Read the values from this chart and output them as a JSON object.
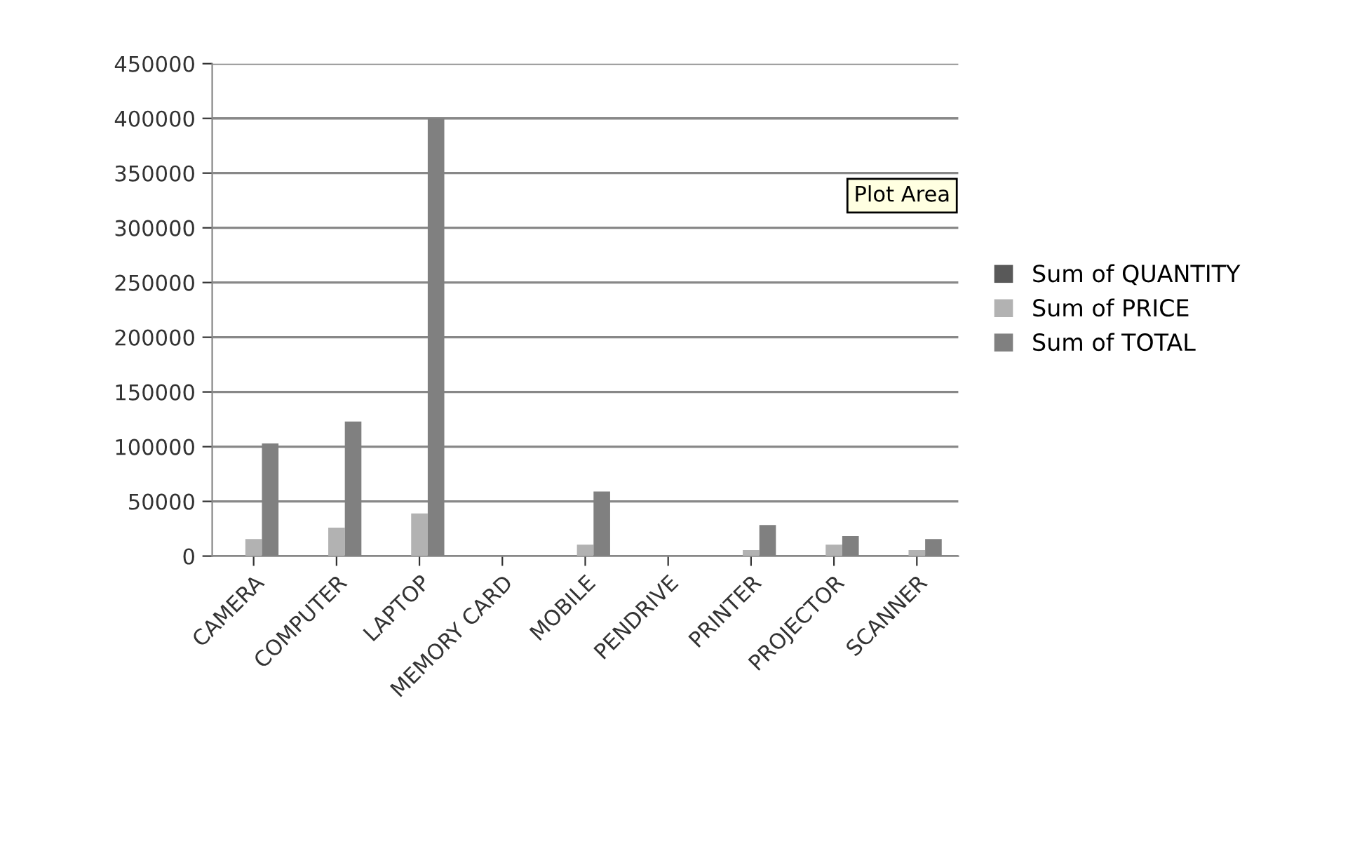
{
  "chart_data": {
    "type": "bar",
    "categories": [
      "CAMERA",
      "COMPUTER",
      "LAPTOP",
      "MEMORY CARD",
      "MOBILE",
      "PENDRIVE",
      "PRINTER",
      "PROJECTOR",
      "SCANNER"
    ],
    "series": [
      {
        "name": "Sum of QUANTITY",
        "color": "#595959",
        "values": [
          null,
          null,
          null,
          null,
          null,
          null,
          null,
          null,
          null
        ]
      },
      {
        "name": "Sum of PRICE",
        "color": "#b2b2b2",
        "values": [
          15600,
          26000,
          39000,
          null,
          10500,
          null,
          5500,
          10500,
          5500
        ]
      },
      {
        "name": "Sum of TOTAL",
        "color": "#808080",
        "values": [
          103000,
          123000,
          400000,
          null,
          59000,
          null,
          28400,
          18300,
          15600
        ]
      }
    ],
    "ylim": [
      0,
      450000
    ],
    "yticks": [
      0,
      50000,
      100000,
      150000,
      200000,
      250000,
      300000,
      350000,
      400000,
      450000
    ],
    "grid": "y",
    "legend": "right",
    "annotations": [
      "Plot Area"
    ]
  }
}
